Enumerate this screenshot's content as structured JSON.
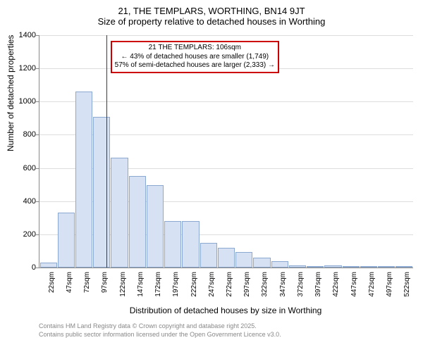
{
  "title_main": "21, THE TEMPLARS, WORTHING, BN14 9JT",
  "title_sub": "Size of property relative to detached houses in Worthing",
  "y_axis": {
    "label": "Number of detached properties",
    "min": 0,
    "max": 1400,
    "step": 200
  },
  "x_axis": {
    "label": "Distribution of detached houses by size in Worthing",
    "tick_start": 22,
    "tick_step": 25,
    "tick_count": 21,
    "tick_suffix": "sqm"
  },
  "bar_color": "#d6e2f3",
  "bar_border": "#8aa8d0",
  "grid_color": "#dddddd",
  "reference_line": {
    "color": "#cc0000",
    "position_index": 3.25
  },
  "annotation": {
    "line1": "21 THE TEMPLARS: 106sqm",
    "line2": "← 43% of detached houses are smaller (1,749)",
    "line3": "57% of semi-detached houses are larger (2,333) →",
    "border_color": "#cc0000"
  },
  "bars": [
    28,
    330,
    1060,
    910,
    660,
    550,
    495,
    280,
    280,
    150,
    120,
    95,
    60,
    40,
    12,
    8,
    12,
    3,
    0,
    0,
    0
  ],
  "footer": {
    "line1": "Contains HM Land Registry data © Crown copyright and database right 2025.",
    "line2": "Contains public sector information licensed under the Open Government Licence v3.0."
  }
}
